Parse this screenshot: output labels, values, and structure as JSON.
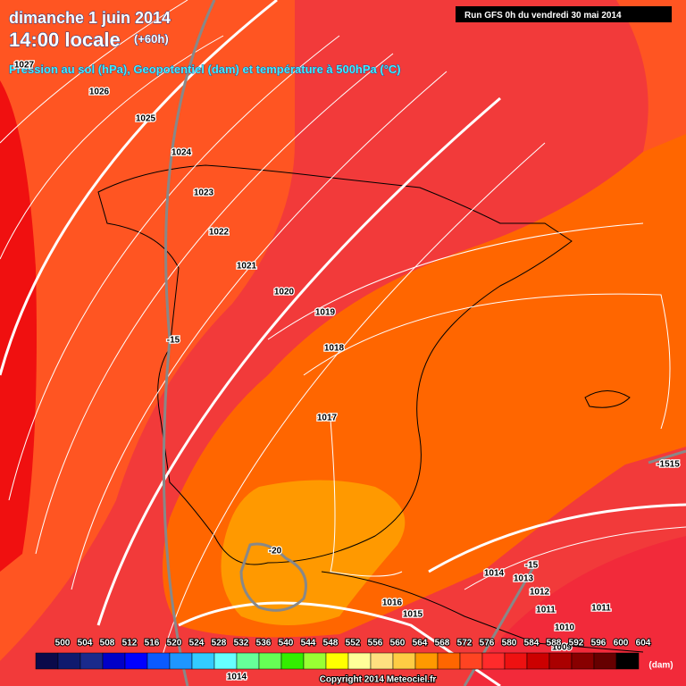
{
  "header": {
    "title": "dimanche 1 juin 2014",
    "time": "14:00 locale",
    "lead": "(+60h)",
    "run": "Run GFS 0h du vendredi 30 mai 2014",
    "subtitle": "Pression au sol (hPa), Geopotentiel (dam) et température à 500hPa (°C)"
  },
  "isobar_labels": [
    1027,
    1026,
    1025,
    1024,
    1023,
    1022,
    1021,
    1020,
    1019,
    1018,
    1017,
    1016,
    1015,
    1014,
    1013,
    1012,
    1011,
    1011,
    1010,
    1009,
    1014
  ],
  "temperature_labels": [
    -15,
    -20,
    -15,
    -1515
  ],
  "legend": {
    "ticks": [
      500,
      504,
      508,
      512,
      516,
      520,
      524,
      528,
      532,
      536,
      540,
      544,
      548,
      552,
      556,
      560,
      564,
      568,
      572,
      576,
      580,
      584,
      588,
      592,
      596,
      600,
      604
    ],
    "colors": [
      "#0a0a4a",
      "#0f1a6e",
      "#1a2a8c",
      "#0000c8",
      "#0000ff",
      "#0a5aff",
      "#1e96ff",
      "#33ccff",
      "#66ffff",
      "#66ff99",
      "#66ff55",
      "#33ee00",
      "#99ff33",
      "#ffff00",
      "#ffff99",
      "#ffe080",
      "#ffcc44",
      "#ff9900",
      "#ff6600",
      "#ff4422",
      "#ff2b2b",
      "#ee1111",
      "#cc0000",
      "#aa0000",
      "#880000",
      "#660000",
      "#000000"
    ],
    "unit": "(dam)"
  },
  "footer": {
    "copyright": "Copyright 2014 Meteociel.fr"
  }
}
